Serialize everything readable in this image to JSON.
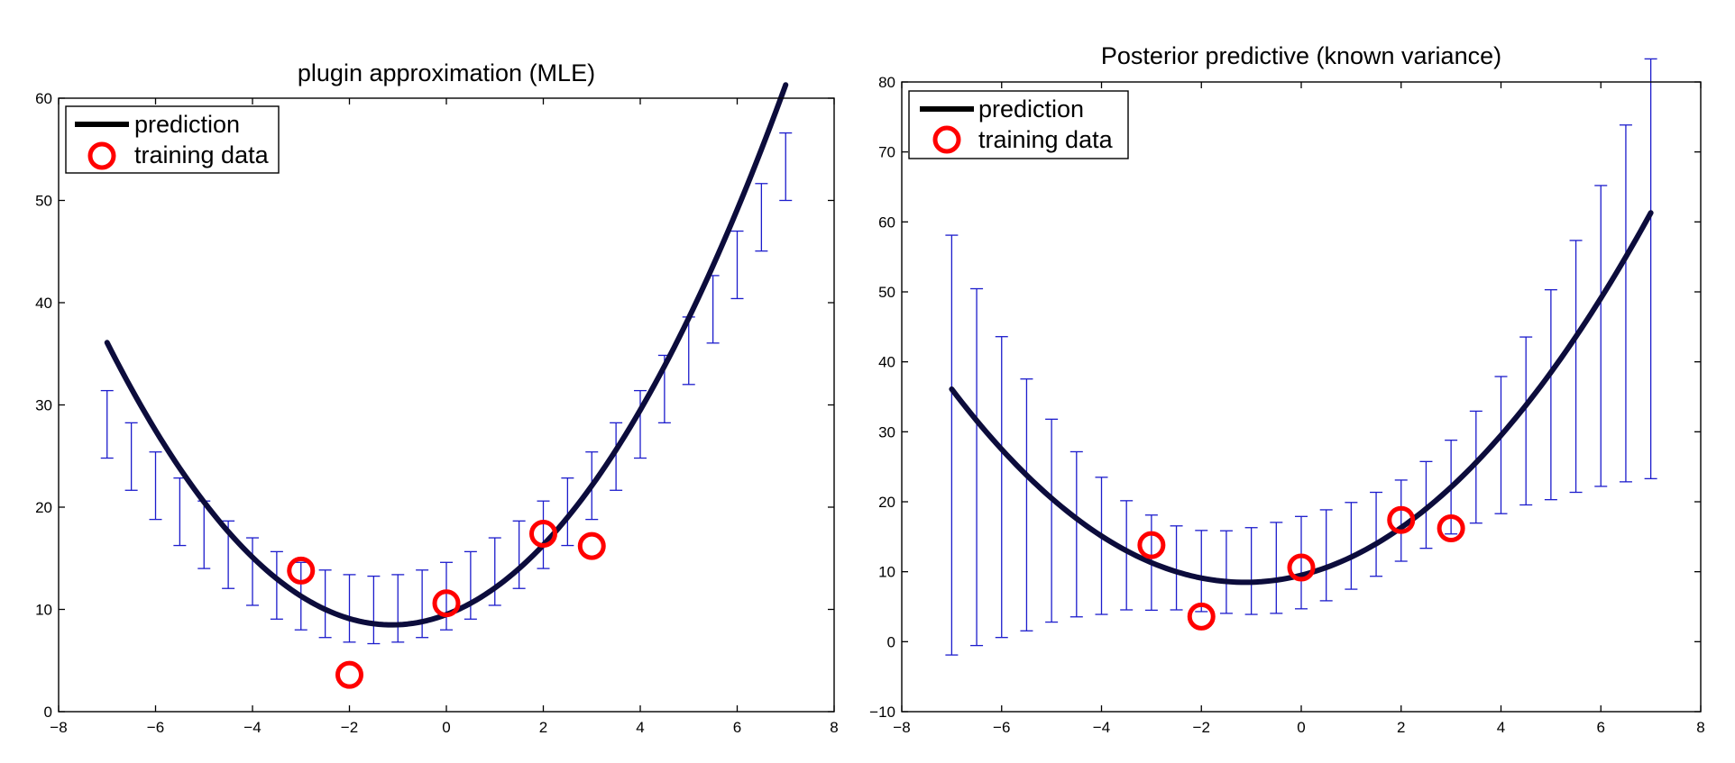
{
  "chart_data": [
    {
      "type": "line",
      "title": "plugin approximation (MLE)",
      "xlabel": "",
      "ylabel": "",
      "xlim": [
        -8,
        8
      ],
      "ylim": [
        0,
        60
      ],
      "xticks": [
        -8,
        -6,
        -4,
        -2,
        0,
        2,
        4,
        6,
        8
      ],
      "yticks": [
        0,
        10,
        20,
        30,
        40,
        50,
        60
      ],
      "legend": {
        "position": "top-left",
        "entries": [
          "prediction",
          "training data"
        ]
      },
      "prediction": {
        "a": 0.8,
        "b": 1.8,
        "c": 9.5,
        "x_range": [
          -7,
          7
        ]
      },
      "error_bars": {
        "x": [
          -7,
          -6.5,
          -6,
          -5.5,
          -5,
          -4.5,
          -4,
          -3.5,
          -3,
          -2.5,
          -2,
          -1.5,
          -1,
          -0.5,
          0,
          0.5,
          1,
          1.5,
          2,
          2.5,
          3,
          3.5,
          4,
          4.5,
          5,
          5.5,
          6,
          6.5,
          7
        ],
        "y": [
          28.1,
          24.95,
          22.1,
          19.55,
          17.3,
          15.35,
          13.7,
          12.35,
          11.3,
          10.55,
          10.1,
          9.95,
          10.1,
          10.55,
          11.3,
          12.35,
          13.7,
          15.35,
          17.3,
          19.55,
          22.1,
          24.95,
          28.1,
          31.55,
          35.3,
          39.35,
          43.7,
          48.35,
          53.3
        ],
        "err": [
          3.3,
          3.3,
          3.3,
          3.3,
          3.3,
          3.3,
          3.3,
          3.3,
          3.3,
          3.3,
          3.3,
          3.3,
          3.3,
          3.3,
          3.3,
          3.3,
          3.3,
          3.3,
          3.3,
          3.3,
          3.3,
          3.3,
          3.3,
          3.3,
          3.3,
          3.3,
          3.3,
          3.3,
          3.3
        ]
      },
      "training_data": {
        "x": [
          -3,
          -2,
          0,
          2,
          3
        ],
        "y": [
          13.8,
          3.6,
          10.6,
          17.4,
          16.2
        ]
      },
      "colors": {
        "prediction": "#0c0c3c",
        "error_bars": "#1c1ccc",
        "training_data": "#ff0000"
      }
    },
    {
      "type": "line",
      "title": "Posterior predictive (known variance)",
      "xlabel": "",
      "ylabel": "",
      "xlim": [
        -8,
        8
      ],
      "ylim": [
        -10,
        80
      ],
      "xticks": [
        -8,
        -6,
        -4,
        -2,
        0,
        2,
        4,
        6,
        8
      ],
      "yticks": [
        -10,
        0,
        10,
        20,
        30,
        40,
        50,
        60,
        70,
        80
      ],
      "legend": {
        "position": "top-left",
        "entries": [
          "prediction",
          "training data"
        ]
      },
      "prediction": {
        "a": 0.8,
        "b": 1.8,
        "c": 9.5,
        "x_range": [
          -7,
          7
        ]
      },
      "error_bars": {
        "x": [
          -7,
          -6.5,
          -6,
          -5.5,
          -5,
          -4.5,
          -4,
          -3.5,
          -3,
          -2.5,
          -2,
          -1.5,
          -1,
          -0.5,
          0,
          0.5,
          1,
          1.5,
          2,
          2.5,
          3,
          3.5,
          4,
          4.5,
          5,
          5.5,
          6,
          6.5,
          7
        ],
        "y": [
          28.1,
          24.95,
          22.1,
          19.55,
          17.3,
          15.35,
          13.7,
          12.35,
          11.3,
          10.55,
          10.1,
          9.95,
          10.1,
          10.55,
          11.3,
          12.35,
          13.7,
          15.35,
          17.3,
          19.55,
          22.1,
          24.95,
          28.1,
          31.55,
          35.3,
          39.35,
          43.7,
          48.35,
          53.3
        ],
        "err": [
          30,
          25.5,
          21.5,
          18,
          14.5,
          11.8,
          9.8,
          7.8,
          6.8,
          6.0,
          5.8,
          5.9,
          6.2,
          6.5,
          6.6,
          6.5,
          6.2,
          6.0,
          5.8,
          6.2,
          6.7,
          8.0,
          9.8,
          12.0,
          15,
          18,
          21.5,
          25.5,
          30
        ]
      },
      "training_data": {
        "x": [
          -3,
          -2,
          0,
          2,
          3
        ],
        "y": [
          13.8,
          3.6,
          10.6,
          17.4,
          16.2
        ]
      },
      "colors": {
        "prediction": "#0c0c3c",
        "error_bars": "#1c1ccc",
        "training_data": "#ff0000"
      }
    }
  ]
}
